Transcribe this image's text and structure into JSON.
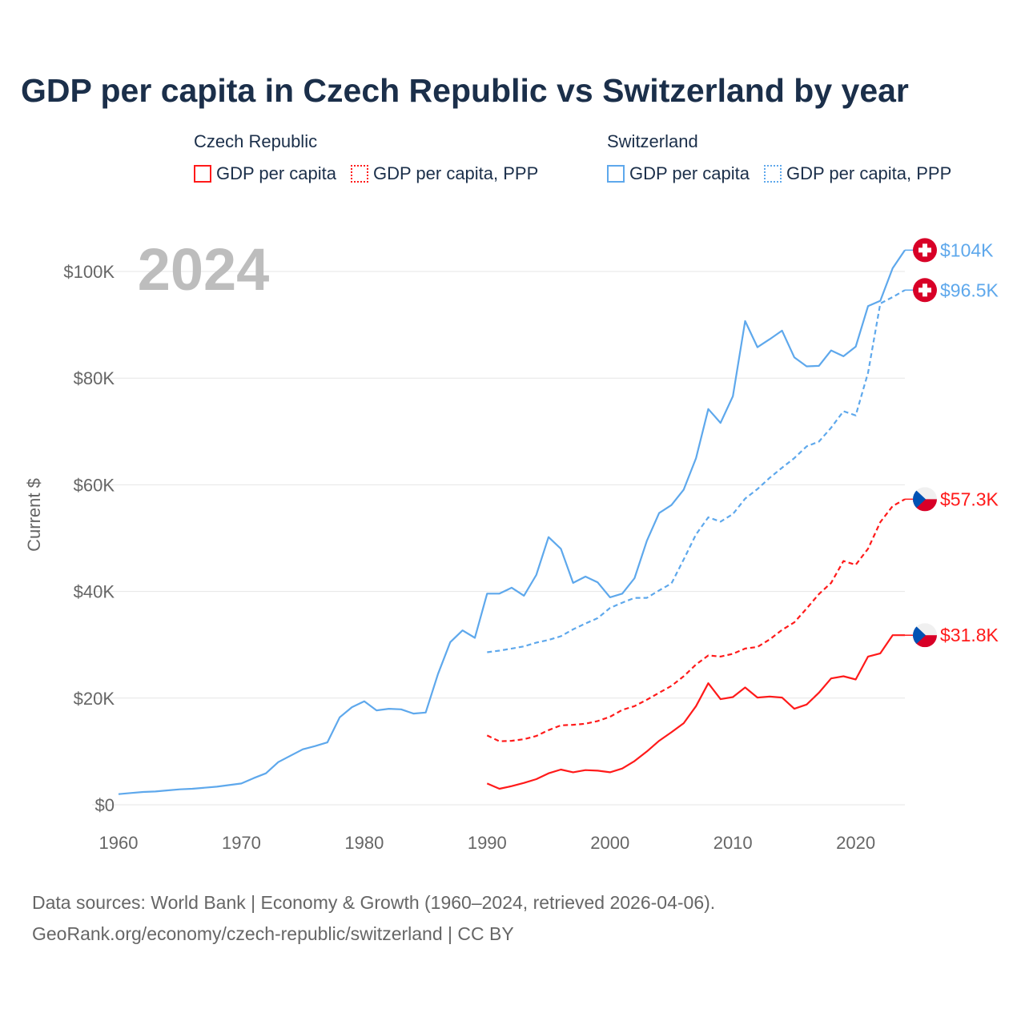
{
  "title": "GDP per capita in Czech Republic vs Switzerland by year",
  "legend": {
    "groups": [
      {
        "name": "Czech Republic",
        "items": [
          "GDP per capita",
          "GDP per capita, PPP"
        ],
        "color": "#ff1a1a"
      },
      {
        "name": "Switzerland",
        "items": [
          "GDP per capita",
          "GDP per capita, PPP"
        ],
        "color": "#5ea8ec"
      }
    ]
  },
  "year_label": "2024",
  "source": {
    "line1": "Data sources: World Bank | Economy & Growth (1960–2024, retrieved 2026-04-06).",
    "line2": "GeoRank.org/economy/czech-republic/switzerland | CC BY"
  },
  "chart_data": {
    "type": "line",
    "title": "GDP per capita in Czech Republic vs Switzerland by year",
    "xlabel": "",
    "ylabel": "Current $",
    "xlim": [
      1960,
      2024
    ],
    "ylim": [
      0,
      100000
    ],
    "x_ticks": [
      1960,
      1970,
      1980,
      1990,
      2000,
      2010,
      2020
    ],
    "y_ticks": [
      0,
      20000,
      40000,
      60000,
      80000,
      100000
    ],
    "y_tick_labels": [
      "$0",
      "$20K",
      "$40K",
      "$60K",
      "$80K",
      "$100K"
    ],
    "grid": true,
    "series": [
      {
        "name": "Switzerland GDP per capita",
        "color": "#5ea8ec",
        "dash": false,
        "end_label": "$104K",
        "flag": "switzerland",
        "start": 1960,
        "values": [
          2.0,
          2.2,
          2.4,
          2.5,
          2.7,
          2.9,
          3.0,
          3.2,
          3.4,
          3.7,
          4.0,
          5.0,
          5.9,
          8.0,
          9.2,
          10.4,
          11.0,
          11.7,
          16.4,
          18.3,
          19.4,
          17.7,
          18.0,
          17.9,
          17.1,
          17.3,
          24.5,
          30.5,
          32.7,
          31.3,
          39.6,
          39.6,
          40.7,
          39.2,
          43.1,
          50.2,
          48.0,
          41.6,
          42.8,
          41.7,
          38.9,
          39.6,
          42.5,
          49.5,
          54.7,
          56.2,
          59.1,
          65.0,
          74.2,
          71.6,
          76.6,
          90.7,
          85.8,
          87.3,
          88.9,
          83.9,
          82.2,
          82.3,
          85.2,
          84.1,
          85.9,
          93.5,
          94.5,
          100.6,
          104.0
        ]
      },
      {
        "name": "Switzerland GDP per capita, PPP",
        "color": "#5ea8ec",
        "dash": true,
        "end_label": "$96.5K",
        "flag": "switzerland",
        "start": 1990,
        "values": [
          28.6,
          28.9,
          29.3,
          29.7,
          30.4,
          30.9,
          31.6,
          32.9,
          34.0,
          35.0,
          36.9,
          37.9,
          38.8,
          38.8,
          40.2,
          41.5,
          46.0,
          50.7,
          53.9,
          53.1,
          54.5,
          57.4,
          59.2,
          61.3,
          63.2,
          65.0,
          67.2,
          68.1,
          70.7,
          73.8,
          73.0,
          81.0,
          94.0,
          95.2,
          96.5
        ]
      },
      {
        "name": "Czech Republic GDP per capita, PPP",
        "color": "#ff1a1a",
        "dash": true,
        "end_label": "$57.3K",
        "flag": "czech",
        "start": 1990,
        "values": [
          13.0,
          11.9,
          12.0,
          12.3,
          12.9,
          14.0,
          14.9,
          15.0,
          15.2,
          15.7,
          16.5,
          17.8,
          18.5,
          19.7,
          21.0,
          22.3,
          24.1,
          26.3,
          28.0,
          27.8,
          28.3,
          29.3,
          29.6,
          31.0,
          32.8,
          34.2,
          36.8,
          39.5,
          41.6,
          45.7,
          45.0,
          48.0,
          53.0,
          56.0,
          57.3
        ]
      },
      {
        "name": "Czech Republic GDP per capita",
        "color": "#ff1a1a",
        "dash": false,
        "end_label": "$31.8K",
        "flag": "czech",
        "start": 1990,
        "values": [
          4.0,
          3.0,
          3.5,
          4.1,
          4.8,
          5.9,
          6.6,
          6.1,
          6.5,
          6.4,
          6.1,
          6.8,
          8.2,
          10.0,
          12.0,
          13.6,
          15.3,
          18.5,
          22.8,
          19.8,
          20.2,
          22.0,
          20.1,
          20.3,
          20.1,
          18.0,
          18.8,
          21.0,
          23.7,
          24.1,
          23.5,
          27.8,
          28.4,
          31.8,
          31.8
        ]
      }
    ],
    "value_units": "thousand USD"
  }
}
